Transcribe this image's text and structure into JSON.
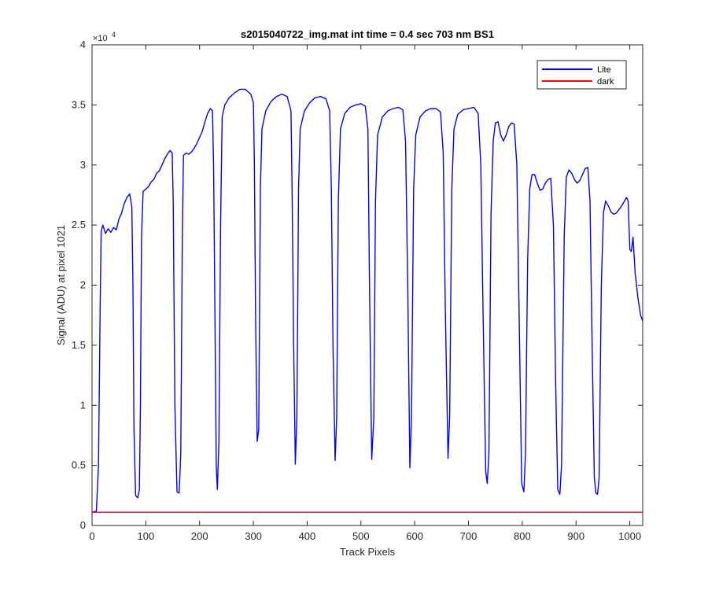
{
  "chart_data": {
    "type": "line",
    "title": "s2015040722_img.mat int time = 0.4 sec  703 nm BS1",
    "xlabel": "Track Pixels",
    "ylabel": "Signal (ADU) at pixel 1021",
    "xlim": [
      0,
      1024
    ],
    "ylim": [
      0,
      40000
    ],
    "x_ticks": [
      0,
      100,
      200,
      300,
      400,
      500,
      600,
      700,
      800,
      900,
      1000
    ],
    "x_tick_labels": [
      "0",
      "100",
      "200",
      "300",
      "400",
      "500",
      "600",
      "700",
      "800",
      "900",
      "1000"
    ],
    "y_ticks": [
      0,
      5000,
      10000,
      15000,
      20000,
      25000,
      30000,
      35000,
      40000
    ],
    "y_tick_labels": [
      "0",
      "0.5",
      "1",
      "1.5",
      "2",
      "2.5",
      "3",
      "3.5",
      "4"
    ],
    "y_exponent_label": "×10",
    "y_exponent_power": "4",
    "grid": false,
    "legend_position": "top-right",
    "series": [
      {
        "name": "Lite",
        "color": "#0000ff",
        "points": [
          [
            0,
            1100
          ],
          [
            8,
            1200
          ],
          [
            12,
            5000
          ],
          [
            15,
            18000
          ],
          [
            17,
            24500
          ],
          [
            20,
            25000
          ],
          [
            25,
            24300
          ],
          [
            30,
            24700
          ],
          [
            35,
            24400
          ],
          [
            40,
            24800
          ],
          [
            45,
            24600
          ],
          [
            50,
            25500
          ],
          [
            55,
            26000
          ],
          [
            60,
            26800
          ],
          [
            65,
            27300
          ],
          [
            70,
            27600
          ],
          [
            74,
            26500
          ],
          [
            76,
            20000
          ],
          [
            78,
            8000
          ],
          [
            81,
            2500
          ],
          [
            85,
            2300
          ],
          [
            88,
            3000
          ],
          [
            90,
            10000
          ],
          [
            92,
            24000
          ],
          [
            95,
            27800
          ],
          [
            100,
            28000
          ],
          [
            105,
            28200
          ],
          [
            110,
            28600
          ],
          [
            115,
            28800
          ],
          [
            120,
            29300
          ],
          [
            125,
            29500
          ],
          [
            130,
            30000
          ],
          [
            135,
            30500
          ],
          [
            140,
            30900
          ],
          [
            145,
            31200
          ],
          [
            149,
            31000
          ],
          [
            151,
            27000
          ],
          [
            154,
            10000
          ],
          [
            158,
            2800
          ],
          [
            162,
            2700
          ],
          [
            165,
            6000
          ],
          [
            168,
            24000
          ],
          [
            170,
            30800
          ],
          [
            175,
            31000
          ],
          [
            180,
            30900
          ],
          [
            185,
            31100
          ],
          [
            190,
            31400
          ],
          [
            195,
            31800
          ],
          [
            200,
            32300
          ],
          [
            205,
            32800
          ],
          [
            210,
            33600
          ],
          [
            215,
            34300
          ],
          [
            220,
            34700
          ],
          [
            224,
            34500
          ],
          [
            226,
            30000
          ],
          [
            228,
            20000
          ],
          [
            231,
            5000
          ],
          [
            233,
            3000
          ],
          [
            236,
            7000
          ],
          [
            239,
            25000
          ],
          [
            242,
            34000
          ],
          [
            247,
            35000
          ],
          [
            255,
            35600
          ],
          [
            265,
            36000
          ],
          [
            275,
            36300
          ],
          [
            285,
            36300
          ],
          [
            295,
            35900
          ],
          [
            300,
            35200
          ],
          [
            302,
            30000
          ],
          [
            304,
            18000
          ],
          [
            307,
            7000
          ],
          [
            310,
            8000
          ],
          [
            313,
            28000
          ],
          [
            316,
            33000
          ],
          [
            323,
            34500
          ],
          [
            333,
            35300
          ],
          [
            343,
            35700
          ],
          [
            353,
            35900
          ],
          [
            363,
            35700
          ],
          [
            370,
            34500
          ],
          [
            372,
            28000
          ],
          [
            375,
            15000
          ],
          [
            378,
            5100
          ],
          [
            381,
            9000
          ],
          [
            384,
            28000
          ],
          [
            387,
            33000
          ],
          [
            395,
            34500
          ],
          [
            405,
            35200
          ],
          [
            415,
            35600
          ],
          [
            425,
            35700
          ],
          [
            435,
            35500
          ],
          [
            442,
            34500
          ],
          [
            445,
            28000
          ],
          [
            448,
            15000
          ],
          [
            452,
            5400
          ],
          [
            455,
            9000
          ],
          [
            458,
            27000
          ],
          [
            462,
            33000
          ],
          [
            470,
            34300
          ],
          [
            480,
            34800
          ],
          [
            490,
            35000
          ],
          [
            500,
            35100
          ],
          [
            508,
            34900
          ],
          [
            513,
            33000
          ],
          [
            516,
            20000
          ],
          [
            520,
            5500
          ],
          [
            524,
            9000
          ],
          [
            527,
            27000
          ],
          [
            531,
            32500
          ],
          [
            540,
            34000
          ],
          [
            550,
            34500
          ],
          [
            560,
            34700
          ],
          [
            570,
            34800
          ],
          [
            578,
            34600
          ],
          [
            583,
            32000
          ],
          [
            587,
            20000
          ],
          [
            591,
            4800
          ],
          [
            594,
            9000
          ],
          [
            598,
            28000
          ],
          [
            602,
            32500
          ],
          [
            610,
            34000
          ],
          [
            620,
            34500
          ],
          [
            630,
            34700
          ],
          [
            640,
            34700
          ],
          [
            648,
            34400
          ],
          [
            653,
            31000
          ],
          [
            657,
            18000
          ],
          [
            662,
            5600
          ],
          [
            665,
            9000
          ],
          [
            669,
            28000
          ],
          [
            673,
            33000
          ],
          [
            680,
            34200
          ],
          [
            690,
            34600
          ],
          [
            700,
            34700
          ],
          [
            710,
            34800
          ],
          [
            718,
            34300
          ],
          [
            723,
            30000
          ],
          [
            727,
            18000
          ],
          [
            732,
            4500
          ],
          [
            735,
            3500
          ],
          [
            738,
            6000
          ],
          [
            742,
            26000
          ],
          [
            746,
            32000
          ],
          [
            750,
            33500
          ],
          [
            755,
            33600
          ],
          [
            760,
            32500
          ],
          [
            765,
            32000
          ],
          [
            770,
            32500
          ],
          [
            775,
            33200
          ],
          [
            780,
            33500
          ],
          [
            785,
            33400
          ],
          [
            790,
            30000
          ],
          [
            795,
            15000
          ],
          [
            799,
            3500
          ],
          [
            803,
            2800
          ],
          [
            806,
            6000
          ],
          [
            810,
            22000
          ],
          [
            814,
            28000
          ],
          [
            818,
            29200
          ],
          [
            823,
            29200
          ],
          [
            828,
            28500
          ],
          [
            833,
            27900
          ],
          [
            838,
            28000
          ],
          [
            843,
            28500
          ],
          [
            848,
            28800
          ],
          [
            853,
            28900
          ],
          [
            858,
            25000
          ],
          [
            862,
            12000
          ],
          [
            866,
            3000
          ],
          [
            870,
            2600
          ],
          [
            873,
            5000
          ],
          [
            878,
            24000
          ],
          [
            882,
            29000
          ],
          [
            887,
            29600
          ],
          [
            892,
            29300
          ],
          [
            897,
            28800
          ],
          [
            902,
            28500
          ],
          [
            907,
            28700
          ],
          [
            912,
            29200
          ],
          [
            917,
            29700
          ],
          [
            922,
            29800
          ],
          [
            926,
            27000
          ],
          [
            930,
            15000
          ],
          [
            934,
            4000
          ],
          [
            937,
            2700
          ],
          [
            940,
            2600
          ],
          [
            943,
            4000
          ],
          [
            947,
            20000
          ],
          [
            951,
            26000
          ],
          [
            955,
            27000
          ],
          [
            960,
            26600
          ],
          [
            965,
            26100
          ],
          [
            970,
            25900
          ],
          [
            975,
            26000
          ],
          [
            980,
            26300
          ],
          [
            985,
            26600
          ],
          [
            990,
            27000
          ],
          [
            994,
            27300
          ],
          [
            997,
            27000
          ],
          [
            1000,
            23000
          ],
          [
            1003,
            22800
          ],
          [
            1006,
            24000
          ],
          [
            1010,
            21000
          ],
          [
            1015,
            19000
          ],
          [
            1020,
            17500
          ],
          [
            1024,
            17000
          ]
        ]
      },
      {
        "name": "dark",
        "color": "#ff0000",
        "points": [
          [
            0,
            1100
          ],
          [
            1024,
            1100
          ]
        ]
      }
    ]
  }
}
